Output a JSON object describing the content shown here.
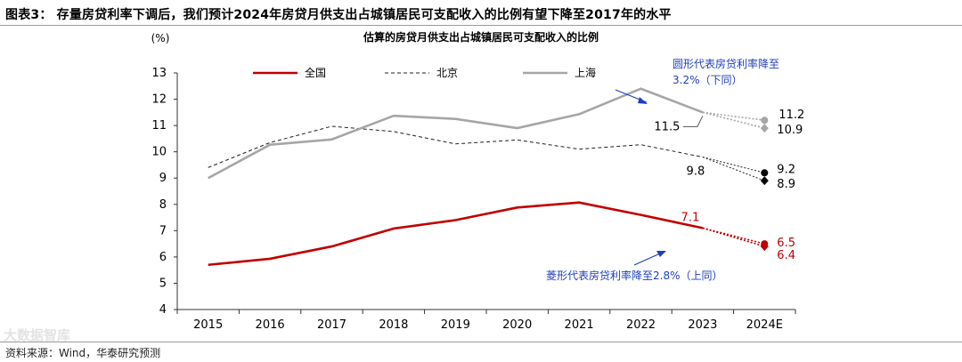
{
  "figure_title": "图表3：  存量房贷利率下调后，我们预计2024年房贷月供支出占城镇居民可支配收入的比例有望下降至2017年的水平",
  "source_note": "资料来源：Wind，华泰研究预测",
  "watermark": "大数据智库",
  "colors": {
    "national": "#c00000",
    "beijing": "#222222",
    "shanghai": "#a6a6a6",
    "annotation": "#1f3fbf"
  },
  "chart_data": {
    "type": "line",
    "title": "估算的房贷月供支出占城镇居民可支配收入的比例",
    "ylabel": "(%)",
    "xlabel": "",
    "ylim": [
      4,
      13
    ],
    "yticks": [
      "4",
      "5",
      "6",
      "7",
      "8",
      "9",
      "10",
      "11",
      "12",
      "13"
    ],
    "categories": [
      "2015",
      "2016",
      "2017",
      "2018",
      "2019",
      "2020",
      "2021",
      "2022",
      "2023",
      "2024E"
    ],
    "series": [
      {
        "name": "全国",
        "style": "solid",
        "values": [
          5.7,
          5.93,
          6.4,
          7.08,
          7.4,
          7.88,
          8.07,
          7.6,
          7.1,
          6.45
        ]
      },
      {
        "name": "北京",
        "style": "dashed",
        "values": [
          9.4,
          10.35,
          10.97,
          10.77,
          10.3,
          10.45,
          10.1,
          10.27,
          9.8,
          8.9
        ]
      },
      {
        "name": "上海",
        "style": "solid",
        "values": [
          9.0,
          10.27,
          10.47,
          11.37,
          11.25,
          10.9,
          11.43,
          12.4,
          11.5,
          11.2
        ]
      }
    ],
    "projections_2024E": {
      "circle_scenario": {
        "national": 6.5,
        "beijing": 9.2,
        "shanghai": 11.2
      },
      "diamond_scenario": {
        "national": 6.4,
        "beijing": 8.9,
        "shanghai": 10.9
      }
    },
    "data_labels": {
      "national_2023": "7.1",
      "beijing_2023": "9.8",
      "shanghai_2023": "11.5",
      "national_circle": "6.5",
      "national_diamond": "6.4",
      "beijing_circle": "9.2",
      "beijing_diamond": "8.9",
      "shanghai_circle": "11.2",
      "shanghai_diamond": "10.9"
    },
    "annotations": {
      "circle_line1": "圆形代表房贷利率降至",
      "circle_line2": "3.2%（下同）",
      "diamond_line1": "菱形代表房贷利率降至2.8%（上同）"
    },
    "legend": [
      "全国",
      "北京",
      "上海"
    ],
    "legend_position": "top"
  }
}
